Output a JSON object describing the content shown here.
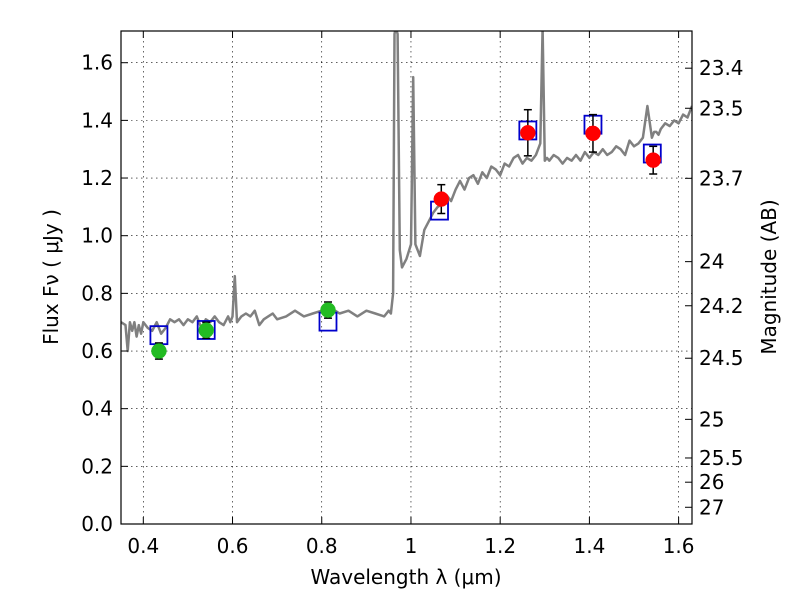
{
  "chart_data": {
    "type": "scatter",
    "xlabel": "Wavelength  λ (μm)",
    "ylabel": "Flux  Fν  ( μJy )",
    "ylabel_right": "Magnitude (AB)",
    "xlim": [
      0.35,
      1.63
    ],
    "ylim": [
      0.0,
      1.71
    ],
    "grid": true,
    "x_ticks": [
      0.4,
      0.6,
      0.8,
      1.0,
      1.2,
      1.4,
      1.6
    ],
    "x_tick_labels": [
      "0.4",
      "0.6",
      "0.8",
      "1",
      "1.2",
      "1.4",
      "1.6"
    ],
    "y_ticks": [
      0.0,
      0.2,
      0.4,
      0.6,
      0.8,
      1.0,
      1.2,
      1.4,
      1.6
    ],
    "y_tick_labels": [
      "0.0",
      "0.2",
      "0.4",
      "0.6",
      "0.8",
      "1.0",
      "1.2",
      "1.4",
      "1.6"
    ],
    "right_ticks": [
      {
        "label": "23.4",
        "flux": 1.581
      },
      {
        "label": "23.5",
        "flux": 1.442
      },
      {
        "label": "23.7",
        "flux": 1.199
      },
      {
        "label": "24",
        "flux": 0.91
      },
      {
        "label": "24.2",
        "flux": 0.757
      },
      {
        "label": "24.5",
        "flux": 0.575
      },
      {
        "label": "25",
        "flux": 0.363
      },
      {
        "label": "25.5",
        "flux": 0.229
      },
      {
        "label": "26",
        "flux": 0.145
      },
      {
        "label": "27",
        "flux": 0.058
      }
    ],
    "series": [
      {
        "kind": "line",
        "color": "#808080",
        "x": [
          0.35,
          0.36,
          0.365,
          0.37,
          0.375,
          0.38,
          0.385,
          0.39,
          0.395,
          0.4,
          0.41,
          0.42,
          0.43,
          0.44,
          0.45,
          0.46,
          0.47,
          0.48,
          0.49,
          0.5,
          0.51,
          0.52,
          0.53,
          0.54,
          0.55,
          0.56,
          0.57,
          0.58,
          0.59,
          0.595,
          0.6,
          0.605,
          0.61,
          0.62,
          0.63,
          0.64,
          0.65,
          0.66,
          0.67,
          0.68,
          0.69,
          0.7,
          0.72,
          0.74,
          0.76,
          0.78,
          0.8,
          0.82,
          0.84,
          0.86,
          0.88,
          0.9,
          0.92,
          0.94,
          0.95,
          0.955,
          0.96,
          0.963,
          0.966,
          0.97,
          0.975,
          0.98,
          0.99,
          1.0,
          1.005,
          1.01,
          1.02,
          1.03,
          1.04,
          1.05,
          1.06,
          1.07,
          1.08,
          1.09,
          1.1,
          1.11,
          1.12,
          1.13,
          1.14,
          1.15,
          1.16,
          1.17,
          1.18,
          1.19,
          1.2,
          1.21,
          1.22,
          1.23,
          1.24,
          1.25,
          1.26,
          1.27,
          1.28,
          1.29,
          1.295,
          1.3,
          1.305,
          1.31,
          1.32,
          1.33,
          1.34,
          1.35,
          1.36,
          1.37,
          1.38,
          1.39,
          1.4,
          1.41,
          1.42,
          1.43,
          1.44,
          1.45,
          1.46,
          1.47,
          1.48,
          1.49,
          1.5,
          1.51,
          1.52,
          1.53,
          1.54,
          1.545,
          1.55,
          1.555,
          1.56,
          1.57,
          1.58,
          1.59,
          1.6,
          1.61,
          1.62,
          1.63
        ],
        "y": [
          0.7,
          0.69,
          0.6,
          0.7,
          0.67,
          0.7,
          0.65,
          0.69,
          0.66,
          0.7,
          0.68,
          0.67,
          0.7,
          0.66,
          0.68,
          0.71,
          0.7,
          0.71,
          0.69,
          0.71,
          0.7,
          0.72,
          0.68,
          0.71,
          0.7,
          0.72,
          0.7,
          0.69,
          0.72,
          0.7,
          0.72,
          0.86,
          0.7,
          0.72,
          0.73,
          0.72,
          0.74,
          0.69,
          0.71,
          0.72,
          0.73,
          0.71,
          0.72,
          0.74,
          0.72,
          0.73,
          0.74,
          0.75,
          0.73,
          0.74,
          0.72,
          0.74,
          0.73,
          0.72,
          0.74,
          0.73,
          0.8,
          1.7,
          1.72,
          1.7,
          0.95,
          0.89,
          0.92,
          0.97,
          1.55,
          0.97,
          0.93,
          1.02,
          1.05,
          1.08,
          1.1,
          1.11,
          1.14,
          1.12,
          1.16,
          1.19,
          1.16,
          1.2,
          1.21,
          1.18,
          1.22,
          1.2,
          1.24,
          1.23,
          1.21,
          1.25,
          1.24,
          1.27,
          1.28,
          1.25,
          1.27,
          1.26,
          1.28,
          1.32,
          1.72,
          1.26,
          1.27,
          1.26,
          1.28,
          1.27,
          1.25,
          1.27,
          1.26,
          1.28,
          1.26,
          1.29,
          1.27,
          1.29,
          1.28,
          1.3,
          1.28,
          1.29,
          1.31,
          1.3,
          1.28,
          1.33,
          1.31,
          1.32,
          1.34,
          1.45,
          1.34,
          1.36,
          1.36,
          1.35,
          1.37,
          1.39,
          1.38,
          1.4,
          1.39,
          1.42,
          1.41,
          1.45
        ]
      },
      {
        "kind": "squares",
        "color": "#0000cc",
        "x": [
          0.435,
          0.541,
          0.814,
          1.064,
          1.262,
          1.408,
          1.541
        ],
        "y": [
          0.655,
          0.673,
          0.702,
          1.087,
          1.365,
          1.385,
          1.285
        ]
      },
      {
        "kind": "points",
        "color": "#22bb22",
        "x": [
          0.435,
          0.541,
          0.814
        ],
        "y": [
          0.6,
          0.672,
          0.742
        ],
        "err": [
          0.028,
          0.028,
          0.028
        ]
      },
      {
        "kind": "points",
        "color": "#ff0000",
        "x": [
          1.068,
          1.262,
          1.408,
          1.543
        ],
        "y": [
          1.127,
          1.357,
          1.355,
          1.262
        ],
        "err": [
          0.05,
          0.08,
          0.065,
          0.048
        ]
      }
    ]
  }
}
